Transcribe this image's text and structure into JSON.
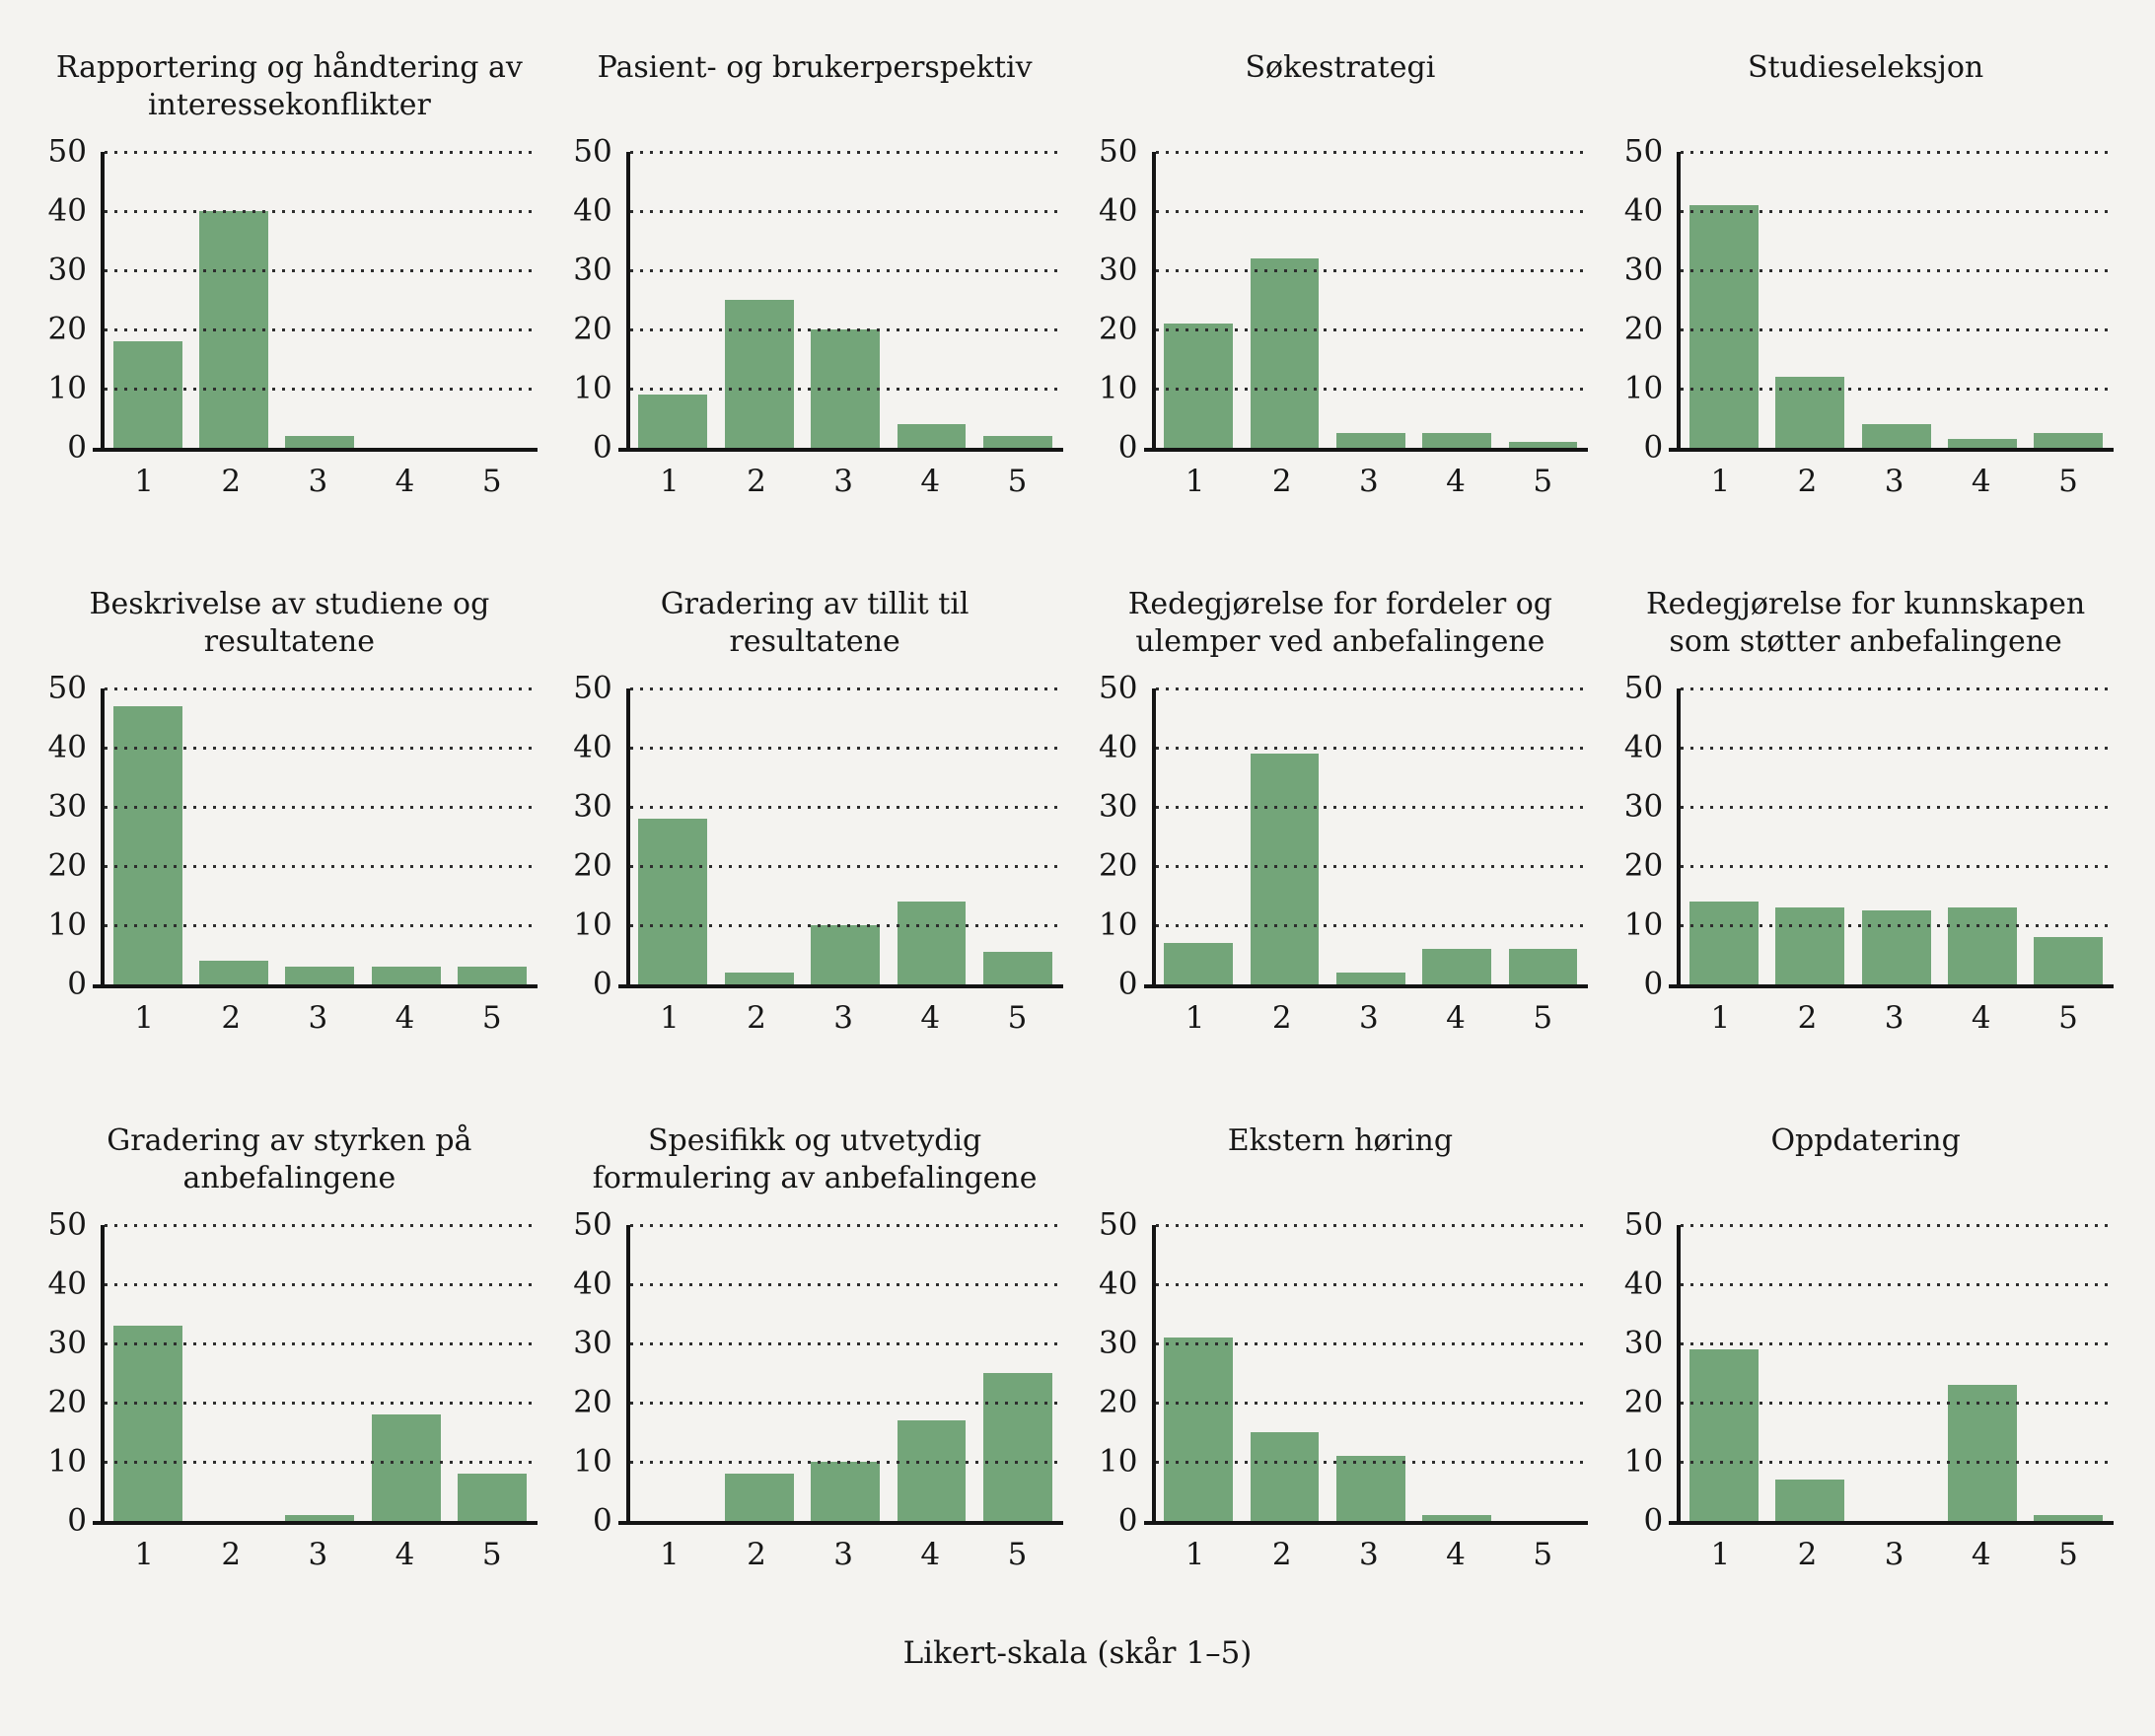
{
  "figure": {
    "xlabel": "Likert-skala (skår 1–5)"
  },
  "colors": {
    "bar": "#73a579",
    "background": "#f4f3f0",
    "axis": "#141414",
    "grid_dots": "#2e2e2e",
    "text": "#161616"
  },
  "axes": {
    "ylim": [
      0,
      50
    ],
    "yticks": [
      0,
      10,
      20,
      30,
      40,
      50
    ],
    "grid": "dotted horizontal lines at 10–50",
    "xticks": [
      "1",
      "2",
      "3",
      "4",
      "5"
    ]
  },
  "chart_data": [
    {
      "type": "bar",
      "title": "Rapportering og håndtering av interessekonflikter",
      "categories": [
        "1",
        "2",
        "3",
        "4",
        "5"
      ],
      "values": [
        18,
        40,
        2,
        0,
        0
      ],
      "ylim": [
        0,
        50
      ]
    },
    {
      "type": "bar",
      "title": "Pasient- og brukerperspektiv",
      "categories": [
        "1",
        "2",
        "3",
        "4",
        "5"
      ],
      "values": [
        9,
        25,
        20,
        4,
        2
      ],
      "ylim": [
        0,
        50
      ]
    },
    {
      "type": "bar",
      "title": "Søkestrategi",
      "categories": [
        "1",
        "2",
        "3",
        "4",
        "5"
      ],
      "values": [
        21,
        32,
        2.5,
        2.5,
        1
      ],
      "ylim": [
        0,
        50
      ]
    },
    {
      "type": "bar",
      "title": "Studieseleksjon",
      "categories": [
        "1",
        "2",
        "3",
        "4",
        "5"
      ],
      "values": [
        41,
        12,
        4,
        1.5,
        2.5
      ],
      "ylim": [
        0,
        50
      ]
    },
    {
      "type": "bar",
      "title": "Beskrivelse av studiene og resultatene",
      "categories": [
        "1",
        "2",
        "3",
        "4",
        "5"
      ],
      "values": [
        47,
        4,
        3,
        3,
        3
      ],
      "ylim": [
        0,
        50
      ]
    },
    {
      "type": "bar",
      "title": "Gradering av tillit til resultatene",
      "categories": [
        "1",
        "2",
        "3",
        "4",
        "5"
      ],
      "values": [
        28,
        2,
        10,
        14,
        5.5
      ],
      "ylim": [
        0,
        50
      ]
    },
    {
      "type": "bar",
      "title": "Redegjørelse for fordeler og ulemper ved anbefalingene",
      "categories": [
        "1",
        "2",
        "3",
        "4",
        "5"
      ],
      "values": [
        7,
        39,
        2,
        6,
        6
      ],
      "ylim": [
        0,
        50
      ]
    },
    {
      "type": "bar",
      "title": "Redegjørelse for kunnskapen som støtter anbefalingene",
      "categories": [
        "1",
        "2",
        "3",
        "4",
        "5"
      ],
      "values": [
        14,
        13,
        12.5,
        13,
        8
      ],
      "ylim": [
        0,
        50
      ]
    },
    {
      "type": "bar",
      "title": "Gradering av styrken på anbefalingene",
      "categories": [
        "1",
        "2",
        "3",
        "4",
        "5"
      ],
      "values": [
        33,
        0,
        1,
        18,
        8
      ],
      "ylim": [
        0,
        50
      ]
    },
    {
      "type": "bar",
      "title": "Spesifikk og utvetydig formulering av anbefalingene",
      "categories": [
        "1",
        "2",
        "3",
        "4",
        "5"
      ],
      "values": [
        0,
        8,
        10,
        17,
        25
      ],
      "ylim": [
        0,
        50
      ]
    },
    {
      "type": "bar",
      "title": "Ekstern høring",
      "categories": [
        "1",
        "2",
        "3",
        "4",
        "5"
      ],
      "values": [
        31,
        15,
        11,
        1,
        0
      ],
      "ylim": [
        0,
        50
      ]
    },
    {
      "type": "bar",
      "title": "Oppdatering",
      "categories": [
        "1",
        "2",
        "3",
        "4",
        "5"
      ],
      "values": [
        29,
        7,
        0,
        23,
        1
      ],
      "ylim": [
        0,
        50
      ]
    }
  ]
}
